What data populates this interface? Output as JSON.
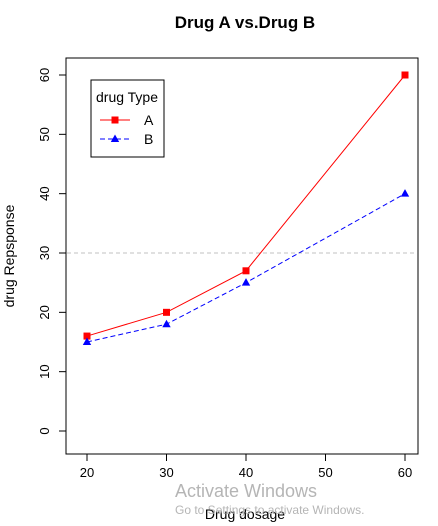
{
  "chart_data": {
    "type": "line",
    "title": "Drug A vs.Drug B",
    "xlabel": "Drug dosage",
    "ylabel": "drug Repsponse",
    "x": [
      20,
      30,
      40,
      60
    ],
    "xlim": [
      20,
      60
    ],
    "ylim": [
      0,
      60
    ],
    "xticks": [
      20,
      30,
      40,
      50,
      60
    ],
    "yticks": [
      0,
      10,
      20,
      30,
      40,
      50,
      60
    ],
    "reference_line": {
      "y": 30,
      "style": "dashed",
      "color": "#c0c0c0"
    },
    "grid": false,
    "series": [
      {
        "name": "A",
        "values": [
          16,
          20,
          27,
          60
        ],
        "color": "#ff0000",
        "line": "solid",
        "marker": "square"
      },
      {
        "name": "B",
        "values": [
          15,
          18,
          25,
          40
        ],
        "color": "#0000ff",
        "line": "dashed",
        "marker": "triangle"
      }
    ],
    "legend": {
      "title": "drug Type",
      "position": "top-left"
    }
  },
  "watermark": {
    "line1": "Activate Windows",
    "line2": "Go to Settings to activate Windows."
  }
}
